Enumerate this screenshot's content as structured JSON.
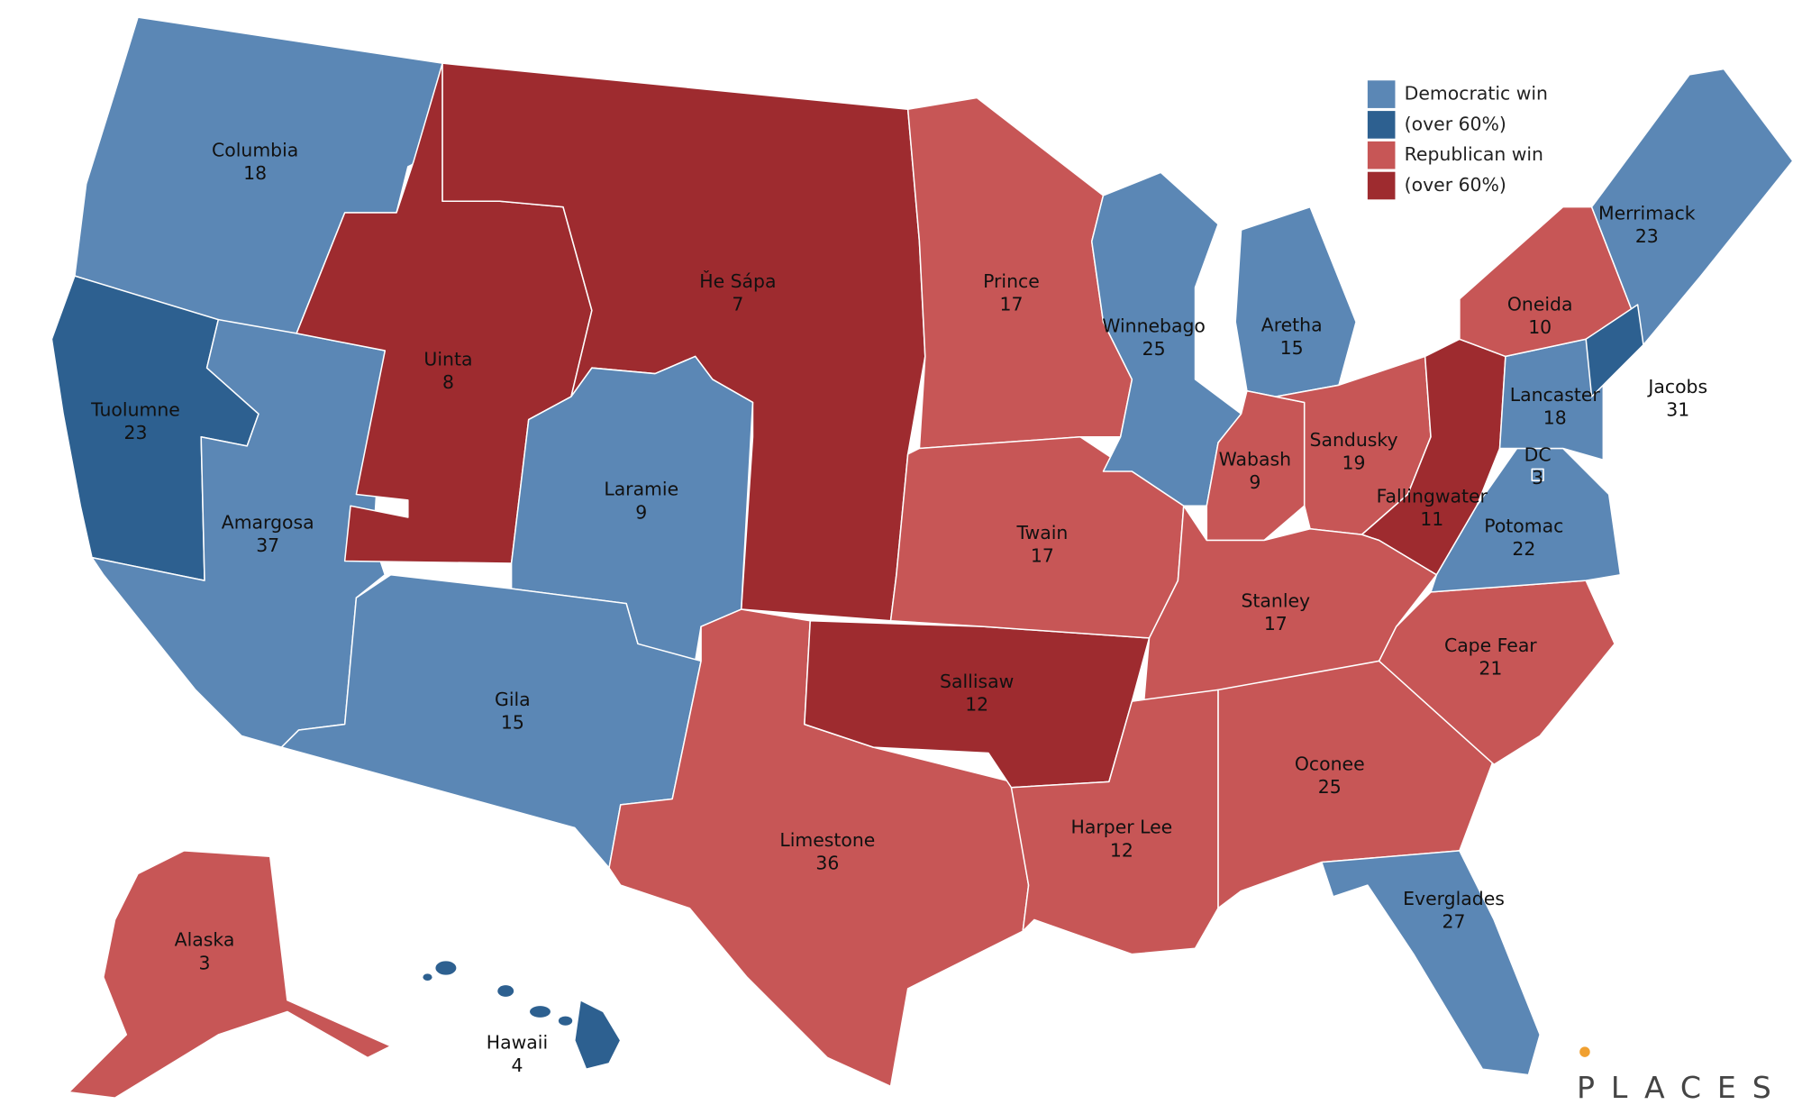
{
  "legend": [
    {
      "label": "Democratic win",
      "color": "#5b87b5"
    },
    {
      "label": "(over 60%)",
      "color": "#2d6090"
    },
    {
      "label": "Republican win",
      "color": "#c75656"
    },
    {
      "label": "(over 60%)",
      "color": "#9e2b2f"
    }
  ],
  "regions": [
    {
      "name": "Columbia",
      "votes": 18,
      "result": 0
    },
    {
      "name": "Tuolumne",
      "votes": 23,
      "result": 1
    },
    {
      "name": "Amargosa",
      "votes": 37,
      "result": 0
    },
    {
      "name": "Uinta",
      "votes": 8,
      "result": 3
    },
    {
      "name": "Ȟe Sápa",
      "votes": 7,
      "result": 3
    },
    {
      "name": "Laramie",
      "votes": 9,
      "result": 0
    },
    {
      "name": "Gila",
      "votes": 15,
      "result": 0
    },
    {
      "name": "Limestone",
      "votes": 36,
      "result": 2
    },
    {
      "name": "Sallisaw",
      "votes": 12,
      "result": 3
    },
    {
      "name": "Prince",
      "votes": 17,
      "result": 2
    },
    {
      "name": "Twain",
      "votes": 17,
      "result": 2
    },
    {
      "name": "Winnebago",
      "votes": 25,
      "result": 0
    },
    {
      "name": "Aretha",
      "votes": 15,
      "result": 0
    },
    {
      "name": "Wabash",
      "votes": 9,
      "result": 2
    },
    {
      "name": "Sandusky",
      "votes": 19,
      "result": 2
    },
    {
      "name": "Fallingwater",
      "votes": 11,
      "result": 3
    },
    {
      "name": "Stanley",
      "votes": 17,
      "result": 2
    },
    {
      "name": "Harper Lee",
      "votes": 12,
      "result": 2
    },
    {
      "name": "Oconee",
      "votes": 25,
      "result": 2
    },
    {
      "name": "Cape Fear",
      "votes": 21,
      "result": 2
    },
    {
      "name": "Potomac",
      "votes": 22,
      "result": 0
    },
    {
      "name": "Lancaster",
      "votes": 18,
      "result": 0
    },
    {
      "name": "DC",
      "votes": 3,
      "result": 0
    },
    {
      "name": "Oneida",
      "votes": 10,
      "result": 2
    },
    {
      "name": "Merrimack",
      "votes": 23,
      "result": 0
    },
    {
      "name": "Jacobs",
      "votes": 31,
      "result": 1
    },
    {
      "name": "Everglades",
      "votes": 27,
      "result": 0
    },
    {
      "name": "Alaska",
      "votes": 3,
      "result": 2
    },
    {
      "name": "Hawaii",
      "votes": 4,
      "result": 1
    }
  ],
  "logo": "PLACES"
}
